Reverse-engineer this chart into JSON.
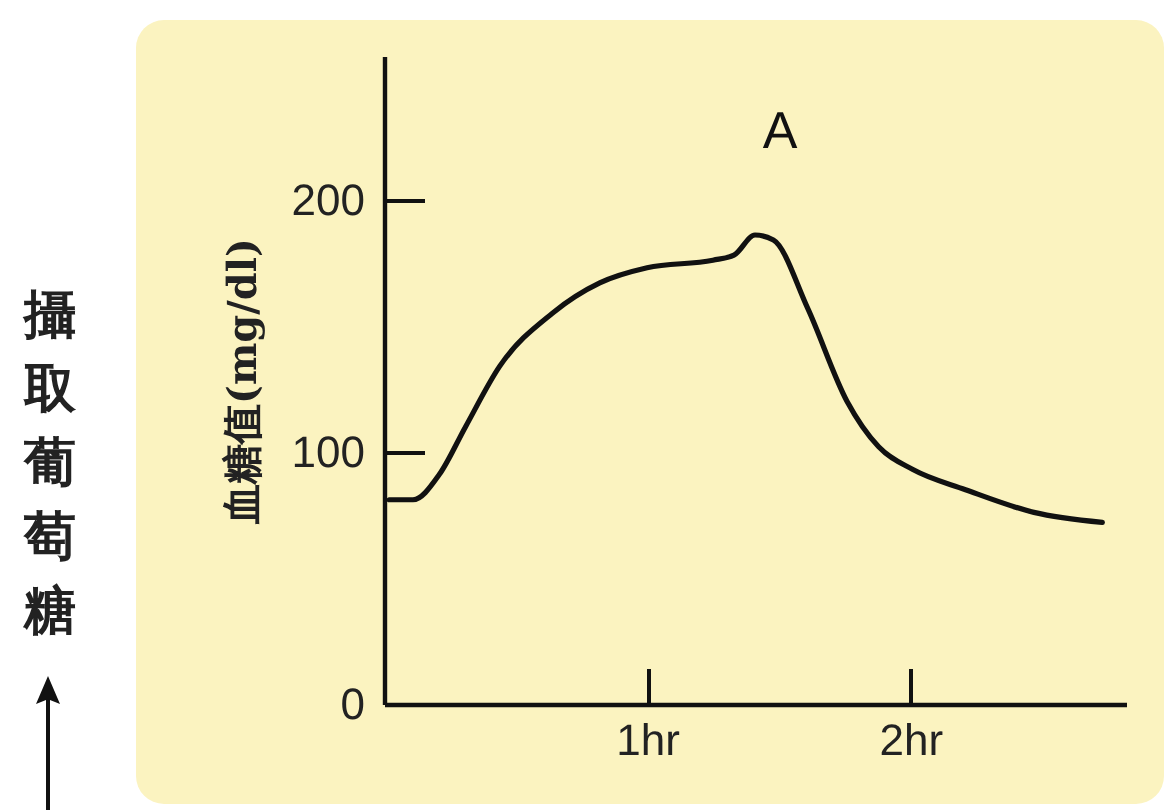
{
  "chart_data": {
    "type": "line",
    "ylabel": "血糖值(mg/dl)",
    "annotations": [
      "A",
      "攝取葡萄糖"
    ],
    "x": [
      0.02,
      0.11,
      0.21,
      0.31,
      0.44,
      0.64,
      0.82,
      1.0,
      1.25,
      1.33,
      1.41,
      1.48,
      1.61,
      1.76,
      1.88,
      2.01,
      2.21,
      2.47,
      2.73
    ],
    "series": [
      {
        "color": "#111111",
        "values": [
          81,
          81,
          91,
          110,
          134,
          155,
          167,
          173,
          176,
          178,
          186,
          184,
          157,
          120,
          102,
          93,
          85,
          76,
          72
        ]
      }
    ],
    "xlim": [
      0,
      2.82
    ],
    "xticks": [
      {
        "value": 1,
        "label": "1hr"
      },
      {
        "value": 2,
        "label": "2hr"
      }
    ],
    "ylim": [
      0,
      257
    ],
    "yticks": [
      0,
      100,
      200
    ],
    "grid": false,
    "marker": "none",
    "line_style": "solid"
  }
}
